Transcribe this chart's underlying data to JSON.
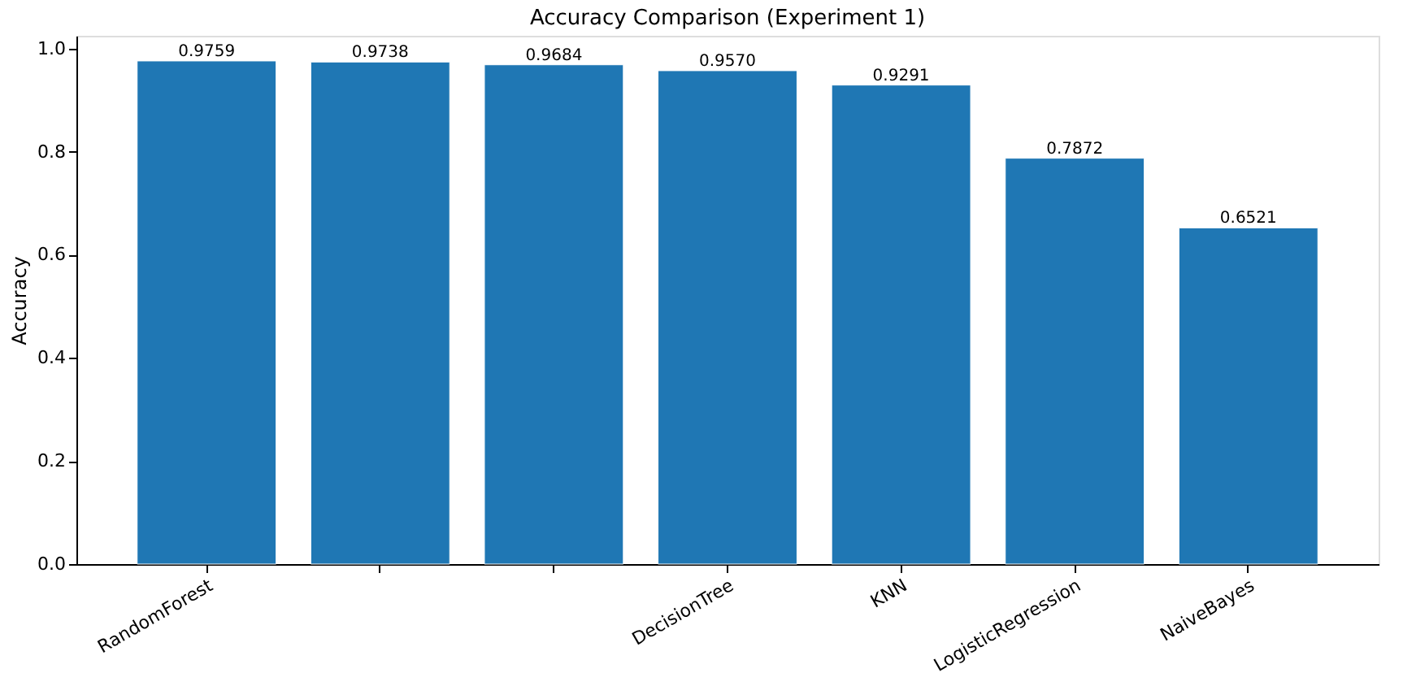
{
  "chart_data": {
    "type": "bar",
    "title": "Accuracy Comparison (Experiment 1)",
    "ylabel": "Accuracy",
    "categories": [
      "RandomForest",
      null,
      null,
      "DecisionTree",
      "KNN",
      "LogisticRegression",
      "NaiveBayes"
    ],
    "values": [
      0.9759,
      0.9738,
      0.9684,
      0.957,
      0.9291,
      0.7872,
      0.6521
    ],
    "color": "#1f77b4",
    "ylim": [
      0,
      1.0247
    ],
    "yticks": [
      {
        "value": 0,
        "label": "0.0"
      },
      0.2,
      0.4,
      0.6,
      0.8,
      {
        "value": 1,
        "label": "1.0"
      }
    ],
    "value_labels": [
      "0.9759",
      "0.9738",
      "0.9684",
      "0.9570",
      "0.9291",
      "0.7872",
      "0.6521"
    ],
    "grid": false
  }
}
